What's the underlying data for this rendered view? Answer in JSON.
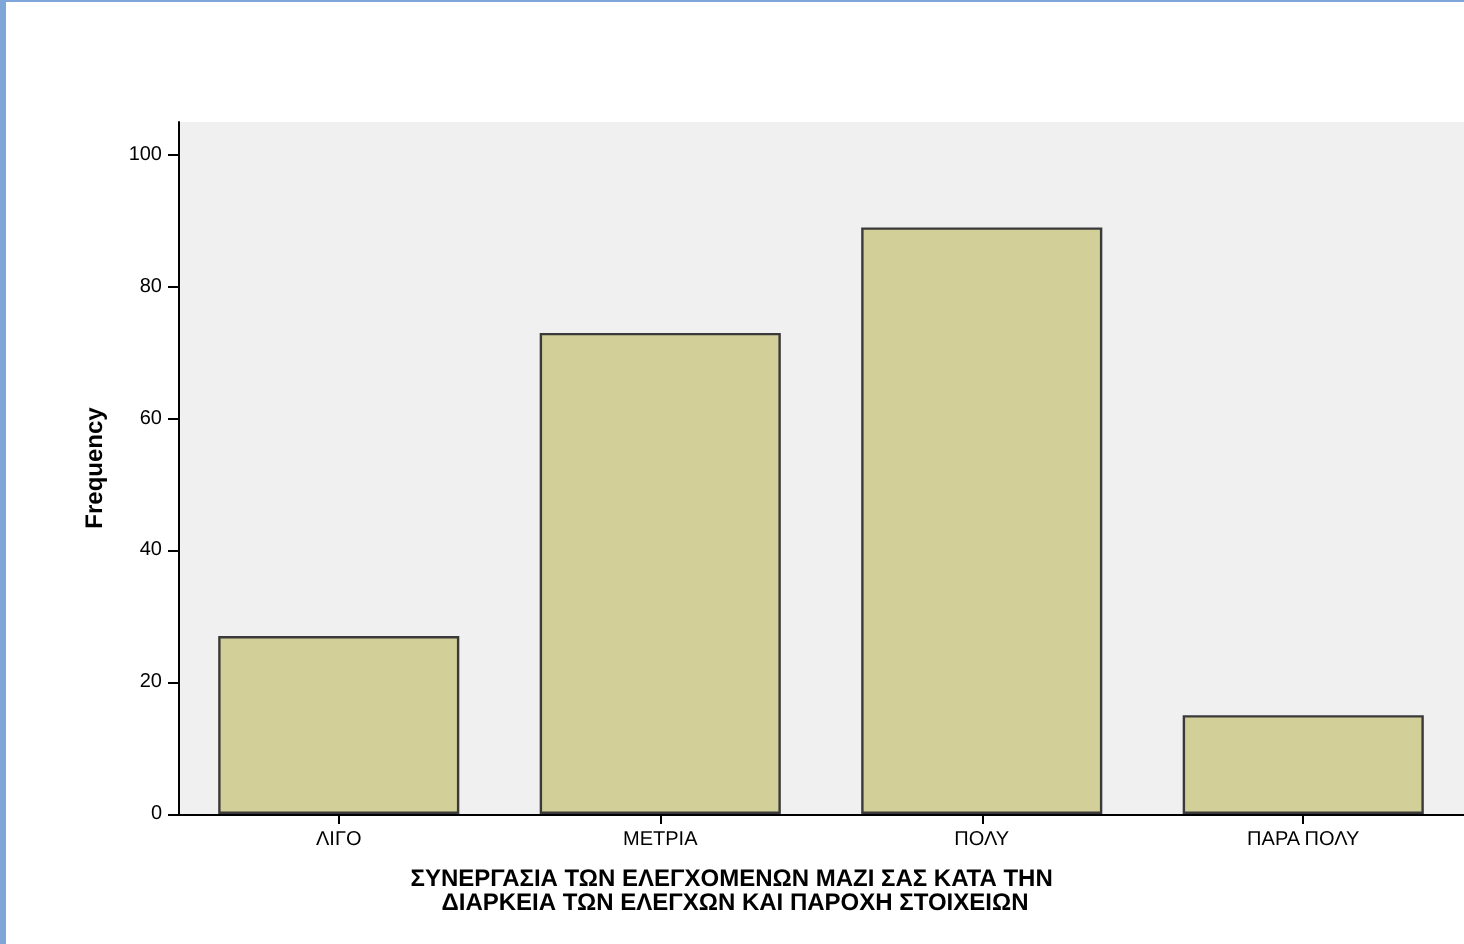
{
  "chart_data": {
    "type": "bar",
    "categories": [
      "ΛΙΓΟ",
      "ΜΕΤΡΙΑ",
      "ΠΟΛΥ",
      "ΠΑΡΑ ΠΟΛΥ"
    ],
    "values": [
      27,
      73,
      89,
      15
    ],
    "color": "#d3cf98",
    "xlabel": "ΣΥΝΕΡΓΑΣΙΑ ΤΩΝ ΕΛΕΓΧΟΜΕΝΩΝ ΜΑΖΙ ΣΑΣ ΚΑΤΑ ΤΗΝ ΔΙΑΡΚΕΙΑ ΤΩΝ ΕΛΕΓΧΩΝ ΚΑΙ ΠΑΡΟΧΗ ΣΤΟΙΧΕΙΩΝ",
    "ylabel": "Frequency",
    "ylim": [
      0,
      105
    ],
    "yticks": [
      0,
      20,
      40,
      60,
      80,
      100
    ],
    "grid": false
  }
}
